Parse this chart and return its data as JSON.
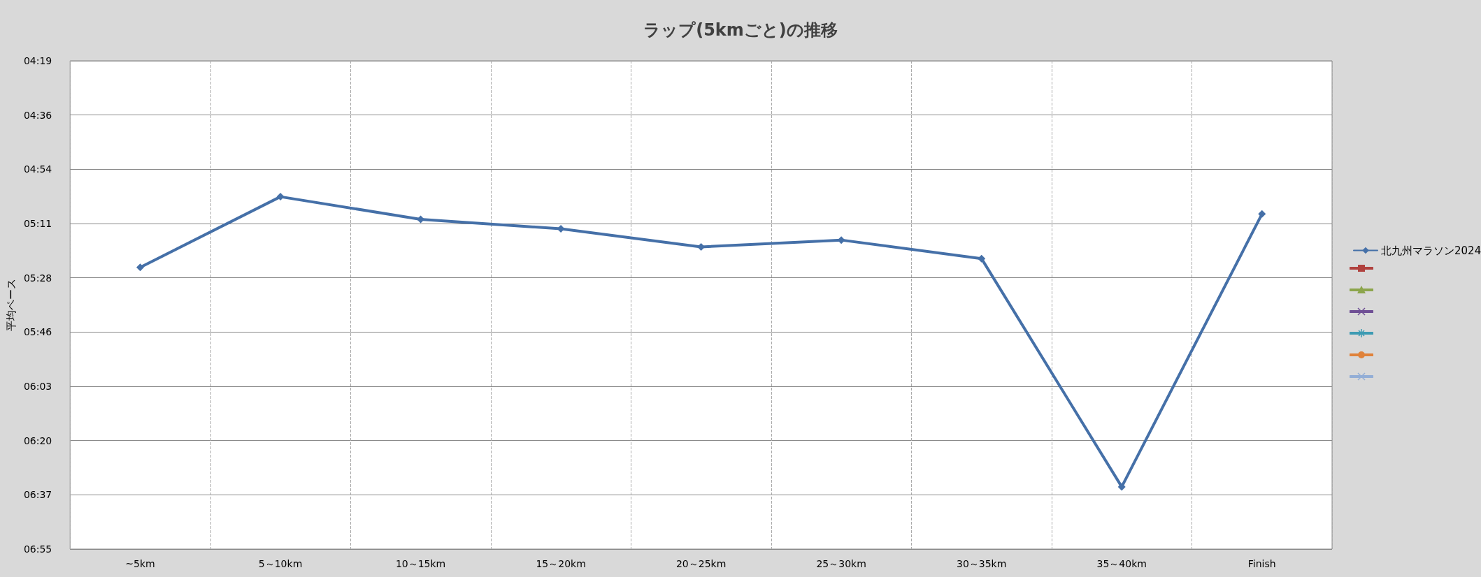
{
  "chart_data": {
    "type": "line",
    "title": "ラップ(5kmごと)の推移",
    "ylabel": "平均ペース",
    "categories": [
      "~5km",
      "5～10km",
      "10～15km",
      "15～20km",
      "20～25km",
      "25～30km",
      "30～35km",
      "35～40km",
      "Finish"
    ],
    "series": [
      {
        "name": "北九州マラソン2024",
        "color": "#4570a8",
        "marker": "diamond",
        "values": [
          325,
          302.5,
          309.7,
          312.7,
          318.5,
          316.3,
          322.2,
          394.9,
          308
        ]
      },
      {
        "color": "#b0413e",
        "marker": "square",
        "values": [
          null,
          null,
          null,
          null,
          null,
          null,
          null,
          null,
          null
        ]
      },
      {
        "color": "#8ca54c",
        "marker": "triangle",
        "values": [
          null,
          null,
          null,
          null,
          null,
          null,
          null,
          null,
          null
        ]
      },
      {
        "color": "#6f4f95",
        "marker": "cross",
        "values": [
          null,
          null,
          null,
          null,
          null,
          null,
          null,
          null,
          null
        ]
      },
      {
        "color": "#3d9bb3",
        "marker": "star",
        "values": [
          null,
          null,
          null,
          null,
          null,
          null,
          null,
          null,
          null
        ]
      },
      {
        "color": "#e0823a",
        "marker": "circle",
        "values": [
          null,
          null,
          null,
          null,
          null,
          null,
          null,
          null,
          null
        ]
      },
      {
        "color": "#93aed6",
        "marker": "cross",
        "values": [
          null,
          null,
          null,
          null,
          null,
          null,
          null,
          null,
          null
        ]
      }
    ],
    "ylim": [
      414.72,
      259.2
    ],
    "yticks": [
      {
        "value": 259.2,
        "label": "04:19"
      },
      {
        "value": 276.48,
        "label": "04:36"
      },
      {
        "value": 293.76,
        "label": "04:54"
      },
      {
        "value": 311.04,
        "label": "05:11"
      },
      {
        "value": 328.32,
        "label": "05:28"
      },
      {
        "value": 345.6,
        "label": "05:46"
      },
      {
        "value": 362.88,
        "label": "06:03"
      },
      {
        "value": 380.16,
        "label": "06:20"
      },
      {
        "value": 397.44,
        "label": "06:37"
      },
      {
        "value": 414.72,
        "label": "06:55"
      }
    ],
    "grid": true,
    "legend": "right",
    "line_style": "solid"
  }
}
